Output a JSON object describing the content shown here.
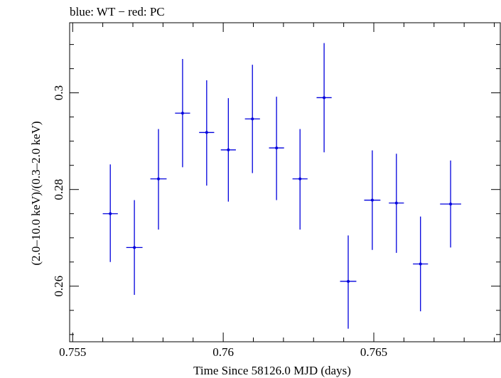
{
  "chart_data": {
    "type": "scatter",
    "title": "blue: WT − red: PC",
    "xlabel": "Time Since 58126.0 MJD (days)",
    "ylabel": "(2.0–10.0 keV)/(0.3–2.0 keV)",
    "xlim": [
      0.7549,
      0.7692
    ],
    "ylim": [
      0.2485,
      0.3145
    ],
    "x_ticks": [
      {
        "value": 0.755,
        "label": "0.755"
      },
      {
        "value": 0.76,
        "label": "0.76"
      },
      {
        "value": 0.765,
        "label": "0.765"
      }
    ],
    "y_ticks": [
      {
        "value": 0.26,
        "label": "0.26"
      },
      {
        "value": 0.28,
        "label": "0.28"
      },
      {
        "value": 0.3,
        "label": "0.3"
      }
    ],
    "grid": false,
    "series": [
      {
        "color": "#0000dd",
        "points": [
          {
            "x": 0.75625,
            "xerr": 0.00025,
            "y": 0.275,
            "yerr_low": 0.01,
            "yerr_high": 0.0102
          },
          {
            "x": 0.75705,
            "xerr": 0.00027,
            "y": 0.268,
            "yerr_low": 0.0098,
            "yerr_high": 0.0098
          },
          {
            "x": 0.75785,
            "xerr": 0.00027,
            "y": 0.2822,
            "yerr_low": 0.0105,
            "yerr_high": 0.0103
          },
          {
            "x": 0.75865,
            "xerr": 0.00025,
            "y": 0.2958,
            "yerr_low": 0.0112,
            "yerr_high": 0.0112
          },
          {
            "x": 0.75945,
            "xerr": 0.00025,
            "y": 0.2918,
            "yerr_low": 0.011,
            "yerr_high": 0.0108
          },
          {
            "x": 0.76017,
            "xerr": 0.00025,
            "y": 0.2882,
            "yerr_low": 0.0107,
            "yerr_high": 0.0107
          },
          {
            "x": 0.76097,
            "xerr": 0.00025,
            "y": 0.2946,
            "yerr_low": 0.0112,
            "yerr_high": 0.0112
          },
          {
            "x": 0.76177,
            "xerr": 0.00025,
            "y": 0.2886,
            "yerr_low": 0.0108,
            "yerr_high": 0.0106
          },
          {
            "x": 0.76255,
            "xerr": 0.00025,
            "y": 0.2822,
            "yerr_low": 0.0105,
            "yerr_high": 0.0103
          },
          {
            "x": 0.76335,
            "xerr": 0.00025,
            "y": 0.299,
            "yerr_low": 0.0113,
            "yerr_high": 0.0113
          },
          {
            "x": 0.76415,
            "xerr": 0.00027,
            "y": 0.261,
            "yerr_low": 0.0098,
            "yerr_high": 0.0095
          },
          {
            "x": 0.76495,
            "xerr": 0.00027,
            "y": 0.2778,
            "yerr_low": 0.0103,
            "yerr_high": 0.0103
          },
          {
            "x": 0.76575,
            "xerr": 0.00025,
            "y": 0.2772,
            "yerr_low": 0.0103,
            "yerr_high": 0.0102
          },
          {
            "x": 0.76655,
            "xerr": 0.00025,
            "y": 0.2646,
            "yerr_low": 0.0098,
            "yerr_high": 0.0098
          },
          {
            "x": 0.76755,
            "xerr": 0.00035,
            "y": 0.277,
            "yerr_low": 0.009,
            "yerr_high": 0.009
          }
        ]
      }
    ]
  }
}
